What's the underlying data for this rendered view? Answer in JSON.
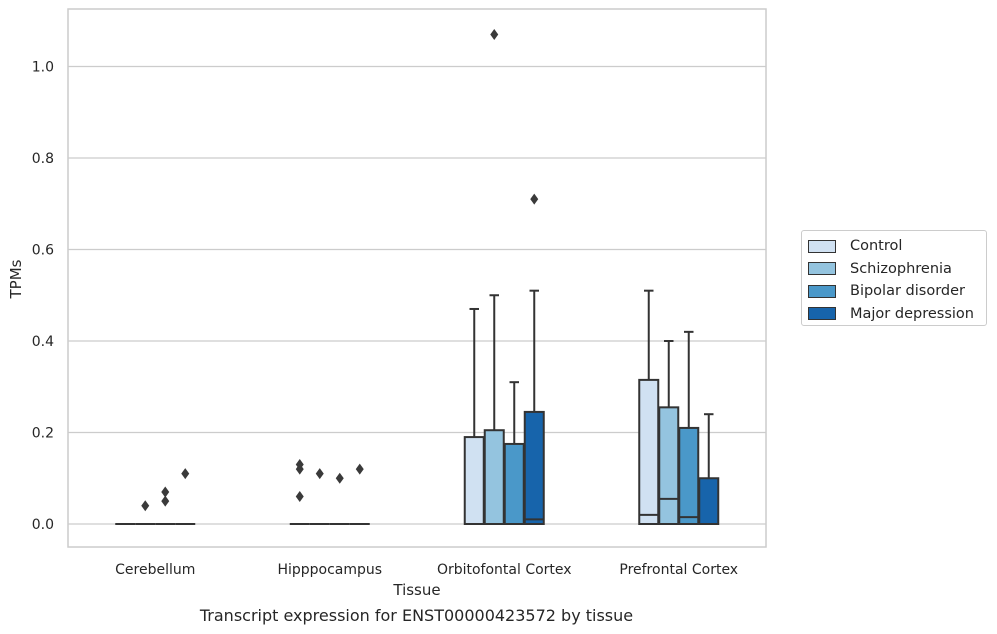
{
  "chart_data": {
    "type": "box",
    "title": "Transcript expression for ENST00000423572 by tissue",
    "xlabel": "Tissue",
    "ylabel": "TPMs",
    "ylim": [
      -0.05,
      1.13
    ],
    "yticks": [
      "0.0",
      "0.2",
      "0.4",
      "0.6",
      "0.8",
      "1.0"
    ],
    "ytick_values": [
      0.0,
      0.2,
      0.4,
      0.6,
      0.8,
      1.0
    ],
    "grid": "horizontal",
    "legend_position": "right",
    "categories": [
      "Cerebellum",
      "Hipppocampus",
      "Orbitofontal Cortex",
      "Prefrontal Cortex"
    ],
    "series": [
      {
        "name": "Control",
        "color": "#d0e1f2",
        "boxes": [
          {
            "q1": 0,
            "median": 0,
            "q3": 0,
            "whisker_low": 0,
            "whisker_high": 0,
            "outliers": []
          },
          {
            "q1": 0,
            "median": 0,
            "q3": 0,
            "whisker_low": 0,
            "whisker_high": 0,
            "outliers": [
              0.13,
              0.12,
              0.06
            ]
          },
          {
            "q1": 0,
            "median": 0,
            "q3": 0.19,
            "whisker_low": 0,
            "whisker_high": 0.47,
            "outliers": []
          },
          {
            "q1": 0,
            "median": 0.02,
            "q3": 0.315,
            "whisker_low": 0,
            "whisker_high": 0.51,
            "outliers": []
          }
        ]
      },
      {
        "name": "Schizophrenia",
        "color": "#94c4df",
        "boxes": [
          {
            "q1": 0,
            "median": 0,
            "q3": 0,
            "whisker_low": 0,
            "whisker_high": 0,
            "outliers": [
              0.04
            ]
          },
          {
            "q1": 0,
            "median": 0,
            "q3": 0,
            "whisker_low": 0,
            "whisker_high": 0,
            "outliers": [
              0.11
            ]
          },
          {
            "q1": 0,
            "median": 0,
            "q3": 0.205,
            "whisker_low": 0,
            "whisker_high": 0.5,
            "outliers": [
              1.07
            ]
          },
          {
            "q1": 0,
            "median": 0.055,
            "q3": 0.255,
            "whisker_low": 0,
            "whisker_high": 0.4,
            "outliers": []
          }
        ]
      },
      {
        "name": "Bipolar disorder",
        "color": "#4a98c9",
        "boxes": [
          {
            "q1": 0,
            "median": 0,
            "q3": 0,
            "whisker_low": 0,
            "whisker_high": 0,
            "outliers": [
              0.07,
              0.05
            ]
          },
          {
            "q1": 0,
            "median": 0,
            "q3": 0,
            "whisker_low": 0,
            "whisker_high": 0,
            "outliers": [
              0.1
            ]
          },
          {
            "q1": 0,
            "median": 0,
            "q3": 0.175,
            "whisker_low": 0,
            "whisker_high": 0.31,
            "outliers": []
          },
          {
            "q1": 0,
            "median": 0.015,
            "q3": 0.21,
            "whisker_low": 0,
            "whisker_high": 0.42,
            "outliers": []
          }
        ]
      },
      {
        "name": "Major depression",
        "color": "#1764ab",
        "boxes": [
          {
            "q1": 0,
            "median": 0,
            "q3": 0,
            "whisker_low": 0,
            "whisker_high": 0,
            "outliers": [
              0.11
            ]
          },
          {
            "q1": 0,
            "median": 0,
            "q3": 0,
            "whisker_low": 0,
            "whisker_high": 0,
            "outliers": [
              0.12
            ]
          },
          {
            "q1": 0,
            "median": 0.01,
            "q3": 0.245,
            "whisker_low": 0,
            "whisker_high": 0.51,
            "outliers": [
              0.71
            ]
          },
          {
            "q1": 0,
            "median": 0,
            "q3": 0.1,
            "whisker_low": 0,
            "whisker_high": 0.24,
            "outliers": []
          }
        ]
      }
    ]
  }
}
